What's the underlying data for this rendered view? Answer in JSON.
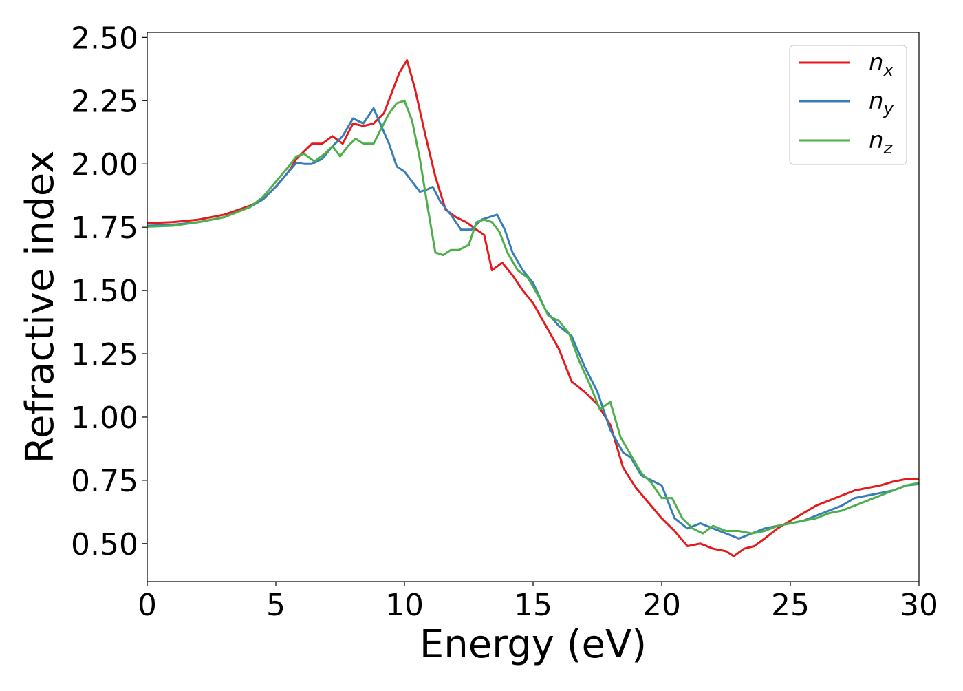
{
  "chart_data": {
    "type": "line",
    "title": "",
    "xlabel": "Energy (eV)",
    "ylabel": "Refractive index",
    "xlim": [
      0,
      30
    ],
    "ylim": [
      0.35,
      2.52
    ],
    "xticks": [
      0,
      5,
      10,
      15,
      20,
      25,
      30
    ],
    "xtick_labels": [
      "0",
      "5",
      "10",
      "15",
      "20",
      "25",
      "30"
    ],
    "yticks": [
      0.5,
      0.75,
      1.0,
      1.25,
      1.5,
      1.75,
      2.0,
      2.25,
      2.5
    ],
    "ytick_labels": [
      "0.50",
      "0.75",
      "1.00",
      "1.25",
      "1.50",
      "1.75",
      "2.00",
      "2.25",
      "2.50"
    ],
    "grid": false,
    "legend_position": "top-right",
    "series": [
      {
        "name": "n_x",
        "label_main": "n",
        "label_sub": "x",
        "color": "#e41a1c",
        "x": [
          0,
          1,
          2,
          3,
          4,
          4.5,
          5,
          5.5,
          5.8,
          6.1,
          6.4,
          6.8,
          7.2,
          7.6,
          8.0,
          8.4,
          8.8,
          9.2,
          9.5,
          9.8,
          10.1,
          10.4,
          10.8,
          11.2,
          11.6,
          12.0,
          12.4,
          12.8,
          13.1,
          13.4,
          13.8,
          14.2,
          14.6,
          15.0,
          15.5,
          16.0,
          16.5,
          17.0,
          17.5,
          18.0,
          18.5,
          19.0,
          19.5,
          20.0,
          20.5,
          21.0,
          21.5,
          22.0,
          22.5,
          22.8,
          23.2,
          23.6,
          24.0,
          24.5,
          25.0,
          25.5,
          26.0,
          26.5,
          27.0,
          27.5,
          28.0,
          28.5,
          29.0,
          29.5,
          30.0
        ],
        "y": [
          1.766,
          1.77,
          1.78,
          1.8,
          1.835,
          1.86,
          1.91,
          1.97,
          2.02,
          2.05,
          2.08,
          2.08,
          2.11,
          2.08,
          2.16,
          2.15,
          2.16,
          2.2,
          2.28,
          2.36,
          2.41,
          2.3,
          2.12,
          1.95,
          1.82,
          1.79,
          1.77,
          1.74,
          1.72,
          1.58,
          1.61,
          1.56,
          1.5,
          1.45,
          1.36,
          1.27,
          1.14,
          1.1,
          1.05,
          0.97,
          0.8,
          0.72,
          0.66,
          0.6,
          0.55,
          0.49,
          0.5,
          0.48,
          0.47,
          0.45,
          0.48,
          0.49,
          0.52,
          0.56,
          0.59,
          0.62,
          0.65,
          0.67,
          0.69,
          0.71,
          0.72,
          0.73,
          0.745,
          0.755,
          0.755
        ]
      },
      {
        "name": "n_y",
        "label_main": "n",
        "label_sub": "y",
        "color": "#377eb8",
        "x": [
          0,
          1,
          2,
          3,
          4,
          4.5,
          5,
          5.5,
          5.8,
          6.1,
          6.4,
          6.8,
          7.2,
          7.6,
          8.0,
          8.4,
          8.8,
          9.1,
          9.4,
          9.7,
          10.0,
          10.3,
          10.6,
          10.9,
          11.1,
          11.4,
          11.8,
          12.2,
          12.6,
          13.0,
          13.3,
          13.6,
          13.9,
          14.2,
          14.6,
          15.0,
          15.5,
          16.0,
          16.5,
          17.0,
          17.5,
          18.0,
          18.5,
          18.8,
          19.2,
          19.6,
          20.0,
          20.5,
          21.0,
          21.5,
          22.0,
          22.5,
          23.0,
          23.5,
          24.0,
          24.5,
          25.0,
          25.5,
          26.0,
          26.5,
          27.0,
          27.5,
          28.0,
          28.5,
          29.0,
          29.5,
          30.0
        ],
        "y": [
          1.756,
          1.76,
          1.77,
          1.79,
          1.83,
          1.86,
          1.91,
          1.97,
          2.005,
          2.0,
          2.0,
          2.02,
          2.07,
          2.11,
          2.18,
          2.16,
          2.22,
          2.15,
          2.08,
          1.99,
          1.97,
          1.93,
          1.89,
          1.9,
          1.91,
          1.85,
          1.8,
          1.74,
          1.74,
          1.78,
          1.79,
          1.8,
          1.74,
          1.65,
          1.58,
          1.53,
          1.42,
          1.36,
          1.32,
          1.2,
          1.1,
          0.95,
          0.86,
          0.84,
          0.77,
          0.75,
          0.73,
          0.6,
          0.56,
          0.58,
          0.56,
          0.54,
          0.52,
          0.54,
          0.56,
          0.57,
          0.58,
          0.59,
          0.61,
          0.63,
          0.65,
          0.68,
          0.69,
          0.7,
          0.71,
          0.73,
          0.735
        ]
      },
      {
        "name": "n_z",
        "label_main": "n",
        "label_sub": "z",
        "color": "#4daf4a",
        "x": [
          0,
          1,
          2,
          3,
          4,
          4.5,
          5,
          5.5,
          5.8,
          6.1,
          6.5,
          6.9,
          7.2,
          7.5,
          7.8,
          8.1,
          8.4,
          8.8,
          9.1,
          9.4,
          9.7,
          10.0,
          10.3,
          10.6,
          10.9,
          11.2,
          11.5,
          11.8,
          12.1,
          12.5,
          12.8,
          13.1,
          13.4,
          13.7,
          14.0,
          14.4,
          14.8,
          15.2,
          15.6,
          16.0,
          16.4,
          16.8,
          17.2,
          17.6,
          18.0,
          18.4,
          18.8,
          19.2,
          19.6,
          20.0,
          20.4,
          20.8,
          21.2,
          21.6,
          22.0,
          22.5,
          23.0,
          23.5,
          24.0,
          24.5,
          25.0,
          25.5,
          26.0,
          26.5,
          27.0,
          27.5,
          28.0,
          28.5,
          29.0,
          29.5,
          30.0
        ],
        "y": [
          1.752,
          1.756,
          1.77,
          1.79,
          1.83,
          1.87,
          1.93,
          1.99,
          2.03,
          2.04,
          2.01,
          2.04,
          2.07,
          2.03,
          2.07,
          2.1,
          2.08,
          2.08,
          2.14,
          2.2,
          2.24,
          2.25,
          2.17,
          2.02,
          1.83,
          1.65,
          1.64,
          1.66,
          1.66,
          1.68,
          1.77,
          1.78,
          1.77,
          1.73,
          1.65,
          1.58,
          1.55,
          1.48,
          1.4,
          1.38,
          1.33,
          1.22,
          1.13,
          1.03,
          1.06,
          0.92,
          0.85,
          0.78,
          0.74,
          0.68,
          0.68,
          0.6,
          0.56,
          0.54,
          0.57,
          0.55,
          0.55,
          0.54,
          0.55,
          0.57,
          0.58,
          0.59,
          0.6,
          0.62,
          0.63,
          0.65,
          0.67,
          0.69,
          0.71,
          0.73,
          0.74
        ]
      }
    ]
  }
}
